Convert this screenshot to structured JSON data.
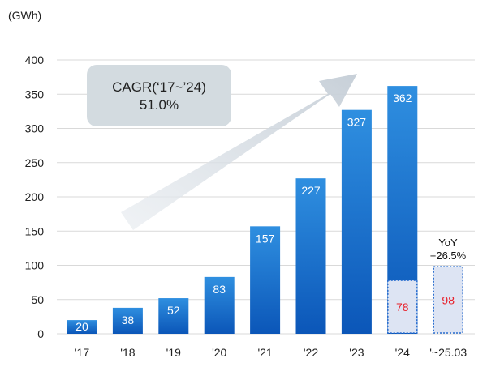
{
  "chart_data": {
    "type": "bar",
    "unit_label": "(GWh)",
    "categories": [
      "'17",
      "'18",
      "'19",
      "'20",
      "'21",
      "'22",
      "'23",
      "'24",
      "'~25.03"
    ],
    "values": [
      20,
      38,
      52,
      83,
      157,
      227,
      327,
      362,
      null
    ],
    "value_labels": [
      "20",
      "38",
      "52",
      "83",
      "157",
      "227",
      "327",
      "362",
      ""
    ],
    "partial_values": [
      null,
      null,
      null,
      null,
      null,
      null,
      null,
      78,
      98
    ],
    "partial_labels": [
      "",
      "",
      "",
      "",
      "",
      "",
      "",
      "78",
      "98"
    ],
    "ylim": [
      0,
      400
    ],
    "yticks": [
      0,
      50,
      100,
      150,
      200,
      250,
      300,
      350,
      400
    ],
    "grid": true,
    "annotations": {
      "cagr_line1": "CAGR(‘17~’24)",
      "cagr_line2": "51.0%",
      "yoy_line1": "YoY",
      "yoy_line2": "+26.5%"
    },
    "colors": {
      "bar_top": "#2f8fe0",
      "bar_bottom": "#0b56b8",
      "partial_fill": "#dde4f3",
      "partial_border": "#2b6fd0",
      "partial_text": "#e8202a",
      "gridline": "#d9d9d9",
      "arrow": "#cdd5dd",
      "cagr_box": "#d3dbe0"
    }
  }
}
